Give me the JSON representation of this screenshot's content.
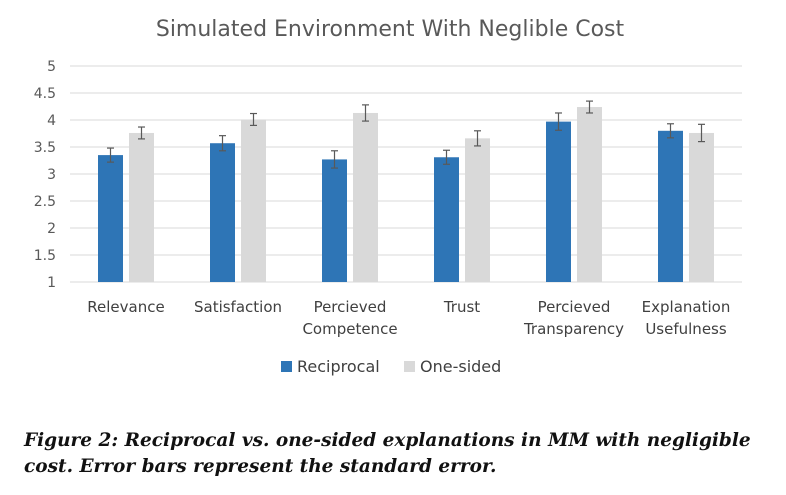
{
  "chart_data": {
    "type": "bar",
    "title": "Simulated Environment With Neglible Cost",
    "categories": [
      [
        "Relevance"
      ],
      [
        "Satisfaction"
      ],
      [
        "Percieved",
        "Competence"
      ],
      [
        "Trust"
      ],
      [
        "Percieved",
        "Transparency"
      ],
      [
        "Explanation",
        "Usefulness"
      ]
    ],
    "series": [
      {
        "name": "Reciprocal",
        "values": [
          3.35,
          3.57,
          3.27,
          3.31,
          3.97,
          3.8
        ],
        "errors": [
          0.13,
          0.14,
          0.16,
          0.13,
          0.16,
          0.13
        ],
        "color": "#2e75b6"
      },
      {
        "name": "One-sided",
        "values": [
          3.76,
          4.01,
          4.13,
          3.66,
          4.24,
          3.76
        ],
        "errors": [
          0.11,
          0.11,
          0.15,
          0.14,
          0.11,
          0.16
        ],
        "color": "#d9d9d9"
      }
    ],
    "ylim": [
      1,
      5
    ],
    "yticks": [
      "1",
      "1.5",
      "2",
      "2.5",
      "3",
      "3.5",
      "4",
      "4.5",
      "5"
    ],
    "grid": true,
    "legend_position": "bottom"
  },
  "caption": "Figure 2: Reciprocal vs. one-sided explanations in MM with negligible cost. Error bars represent the standard error."
}
